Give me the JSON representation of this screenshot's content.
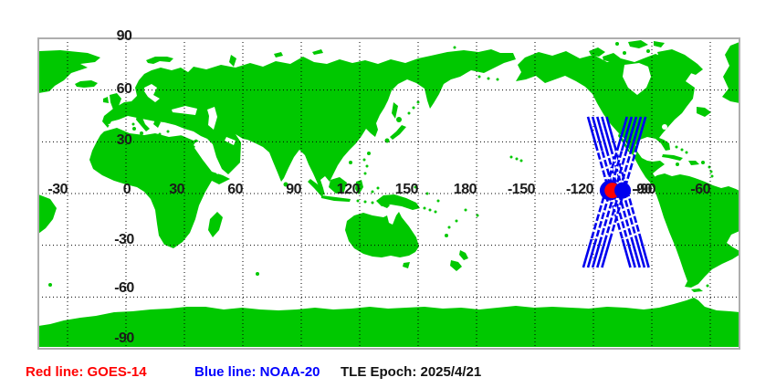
{
  "plot": {
    "kind": "satellite-ground-track-map",
    "lon_range": [
      -45,
      315
    ],
    "lat_range": [
      -90,
      90
    ],
    "grid": "dotted",
    "land_color": "#00c800",
    "frame_color": "#aeaeae",
    "grid_color": "#000000",
    "tick_color": "#1b1b1b"
  },
  "axes": {
    "lon_ticks": [
      {
        "label": "-30",
        "lon": -30
      },
      {
        "label": "0",
        "lon": 0,
        "center": true
      },
      {
        "label": "30",
        "lon": 30
      },
      {
        "label": "60",
        "lon": 60
      },
      {
        "label": "90",
        "lon": 90
      },
      {
        "label": "120",
        "lon": 120
      },
      {
        "label": "150",
        "lon": 150
      },
      {
        "label": "180",
        "lon": 180
      },
      {
        "label": "-150",
        "lon": -150
      },
      {
        "label": "-120",
        "lon": -120
      },
      {
        "label": "-90",
        "lon": -90,
        "doubled": true
      },
      {
        "label": "-60",
        "lon": -60
      }
    ],
    "lat_ticks": [
      {
        "label": "90",
        "lat": 90
      },
      {
        "label": "60",
        "lat": 60
      },
      {
        "label": "30",
        "lat": 30
      },
      {
        "label": "-30",
        "lat": -30
      },
      {
        "label": "-60",
        "lat": -60
      },
      {
        "label": "-90",
        "lat": -90
      }
    ]
  },
  "satellites": [
    {
      "name": "GOES-14",
      "color": "#ff0000",
      "type": "geostationary",
      "marker": {
        "lon": -110.3,
        "lat": 1.8,
        "r": 8.5
      }
    },
    {
      "name": "NOAA-20",
      "color": "#0000ee",
      "type": "polar",
      "markers": [
        {
          "lon": -111.6,
          "lat": 1.8,
          "r": 11
        },
        {
          "lon": -105.0,
          "lat": 1.8,
          "r": 9
        }
      ],
      "passes": [
        {
          "start": {
            "lon": -122.8,
            "lat": 44.5
          },
          "end": {
            "lon": -101.0,
            "lat": -42.9
          }
        },
        {
          "start": {
            "lon": -120.4,
            "lat": 44.5
          },
          "end": {
            "lon": -98.6,
            "lat": -42.9
          }
        },
        {
          "start": {
            "lon": -118.0,
            "lat": 44.5
          },
          "end": {
            "lon": -96.2,
            "lat": -42.9
          }
        },
        {
          "start": {
            "lon": -115.6,
            "lat": 44.5
          },
          "end": {
            "lon": -93.8,
            "lat": -42.9
          }
        },
        {
          "start": {
            "lon": -113.2,
            "lat": 44.5
          },
          "end": {
            "lon": -91.6,
            "lat": -42.9
          }
        },
        {
          "start": {
            "lon": -102.8,
            "lat": 44.5
          },
          "end": {
            "lon": -125.2,
            "lat": -42.9
          }
        },
        {
          "start": {
            "lon": -100.4,
            "lat": 44.5
          },
          "end": {
            "lon": -122.8,
            "lat": -42.9
          }
        },
        {
          "start": {
            "lon": -98.0,
            "lat": 44.5
          },
          "end": {
            "lon": -120.4,
            "lat": -42.9
          }
        },
        {
          "start": {
            "lon": -95.6,
            "lat": 44.5
          },
          "end": {
            "lon": -118.0,
            "lat": -42.9
          }
        },
        {
          "start": {
            "lon": -93.2,
            "lat": 44.5
          },
          "end": {
            "lon": -115.6,
            "lat": -42.9
          }
        }
      ]
    }
  ],
  "legend": {
    "red_label": "Red line: GOES-14",
    "blue_label": "Blue line: NOAA-20",
    "epoch_label": "TLE Epoch: 2025/4/21"
  }
}
